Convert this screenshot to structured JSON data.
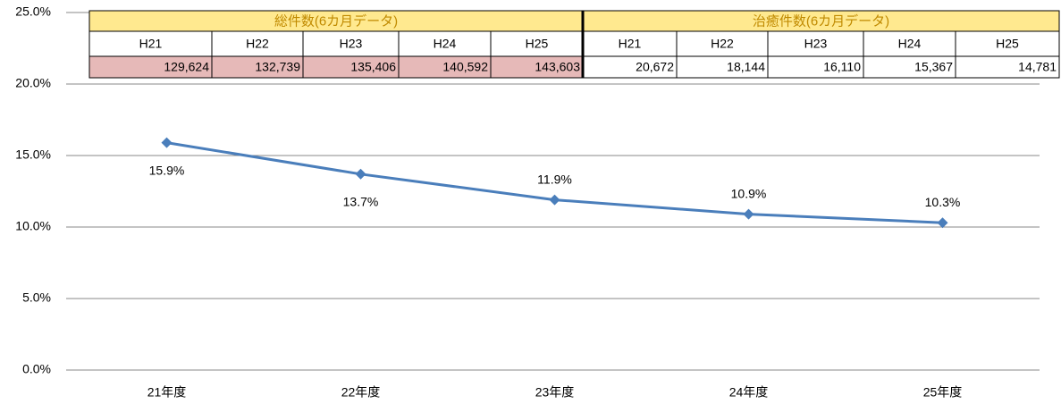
{
  "chart_data": {
    "type": "line",
    "categories": [
      "21年度",
      "22年度",
      "23年度",
      "24年度",
      "25年度"
    ],
    "series": [
      {
        "name": null,
        "color": "#4a7ebb",
        "values": [
          15.9,
          13.7,
          11.9,
          10.9,
          10.3
        ],
        "value_labels": [
          "15.9%",
          "13.7%",
          "11.9%",
          "10.9%",
          "10.3%"
        ]
      }
    ],
    "ylim": [
      0,
      25
    ],
    "yticks": [
      {
        "value": 0,
        "label": "0.0%"
      },
      {
        "value": 5,
        "label": "5.0%"
      },
      {
        "value": 10,
        "label": "10.0%"
      },
      {
        "value": 15,
        "label": "15.0%"
      },
      {
        "value": 20,
        "label": "20.0%"
      },
      {
        "value": 25,
        "label": "25.0%"
      }
    ],
    "grid": true
  },
  "table": {
    "groups": [
      "総件数(6カ月データ)",
      "治癒件数(6カ月データ)"
    ],
    "subheaders": [
      "H21",
      "H22",
      "H23",
      "H24",
      "H25",
      "H21",
      "H22",
      "H23",
      "H24",
      "H25"
    ],
    "row": [
      "129,624",
      "132,739",
      "135,406",
      "140,592",
      "143,603",
      "20,672",
      "18,144",
      "16,110",
      "15,367",
      "14,781"
    ]
  }
}
